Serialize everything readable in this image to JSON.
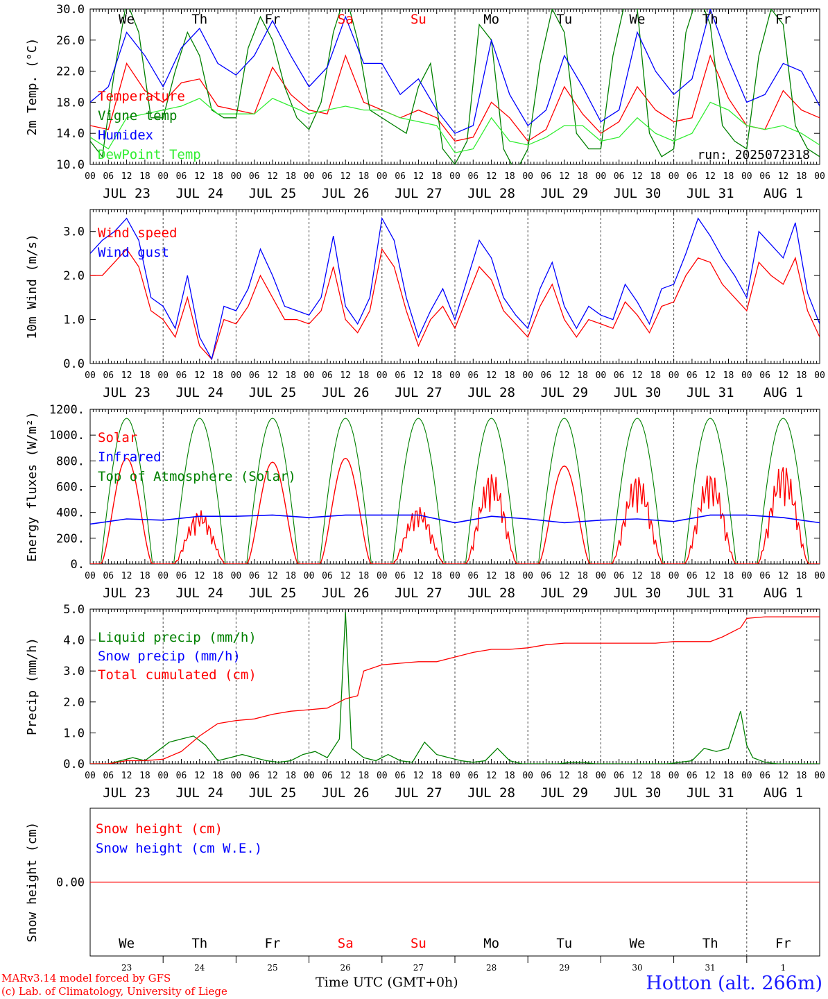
{
  "window": {
    "model_credit": "MARv3.14 model forced by GFS",
    "lab_credit": "(c) Lab. of Climatology, University of Liege",
    "location": "Hotton (alt. 266m)",
    "time_axis_label": "Time UTC (GMT+0h)",
    "run_label": "run: 2025072318"
  },
  "colors": {
    "red": "#ff0000",
    "blue": "#0000ff",
    "green": "#008000",
    "lightgreen": "#33ee33",
    "black": "#000000"
  },
  "days": {
    "weekday_labels": [
      "We",
      "Th",
      "Fr",
      "Sa",
      "Su",
      "Mo",
      "Tu",
      "We",
      "Th",
      "Fr"
    ],
    "weekday_colors": [
      "#000000",
      "#000000",
      "#000000",
      "#ff0000",
      "#ff0000",
      "#000000",
      "#000000",
      "#000000",
      "#000000",
      "#000000"
    ],
    "date_labels": [
      "JUL 23",
      "JUL 24",
      "JUL 25",
      "JUL 26",
      "JUL 27",
      "JUL 28",
      "JUL 29",
      "JUL 30",
      "JUL 31",
      "AUG  1"
    ],
    "day_numbers": [
      "23",
      "24",
      "25",
      "26",
      "27",
      "28",
      "29",
      "30",
      "31",
      "1"
    ],
    "hour_ticks": [
      "00",
      "06",
      "12",
      "18"
    ],
    "final_hour_tick": "00"
  },
  "chart_data": [
    {
      "type": "line",
      "ylabel": "2m Temp. (°C)",
      "ylim": [
        10,
        30
      ],
      "yticks": [
        "10.0",
        "14.0",
        "18.0",
        "22.0",
        "26.0",
        "30.0"
      ],
      "x_unit": "hours since JUL 23 00 UTC",
      "series": [
        {
          "name": "Temperature",
          "color": "#ff0000",
          "x": [
            0,
            6,
            12,
            18,
            24,
            30,
            36,
            42,
            48,
            54,
            60,
            66,
            72,
            78,
            84,
            90,
            96,
            102,
            108,
            114,
            120,
            126,
            132,
            138,
            144,
            150,
            156,
            162,
            168,
            174,
            180,
            186,
            192,
            198,
            204,
            210,
            216,
            222,
            228,
            234,
            240
          ],
          "y": [
            15,
            14.5,
            23,
            19.5,
            18,
            20.5,
            21,
            17.5,
            17,
            16.5,
            22.5,
            19,
            17,
            16.5,
            24,
            18,
            17,
            16,
            17,
            16,
            13,
            13.5,
            18,
            16,
            13,
            14.5,
            20,
            16.5,
            14,
            15.5,
            20,
            17,
            15.5,
            16,
            24,
            18.5,
            15,
            14.5,
            19.5,
            17,
            16
          ]
        },
        {
          "name": "Vigne temp",
          "color": "#008000",
          "x": [
            0,
            4,
            8,
            12,
            16,
            20,
            24,
            28,
            32,
            36,
            40,
            44,
            48,
            52,
            56,
            60,
            64,
            68,
            72,
            76,
            80,
            84,
            88,
            92,
            96,
            100,
            104,
            108,
            112,
            116,
            120,
            124,
            128,
            132,
            136,
            140,
            144,
            148,
            152,
            156,
            160,
            164,
            168,
            172,
            176,
            180,
            184,
            188,
            192,
            196,
            200,
            204,
            208,
            212,
            216,
            220,
            224,
            228,
            232,
            236,
            240
          ],
          "y": [
            13,
            11,
            22,
            31,
            27,
            16,
            16,
            22,
            27,
            24,
            17,
            16,
            16,
            25,
            29,
            26,
            20,
            16,
            14.5,
            18,
            27,
            32,
            26,
            17,
            16,
            15,
            14,
            20,
            23,
            12,
            10,
            13,
            28,
            26,
            12,
            9,
            12,
            23,
            30,
            27,
            14,
            12,
            12,
            24,
            31,
            30,
            14,
            11,
            12,
            27,
            32,
            28,
            15,
            13,
            12,
            24,
            30,
            28,
            15,
            12,
            11
          ]
        },
        {
          "name": "Humidex",
          "color": "#0000ff",
          "x": [
            0,
            6,
            12,
            18,
            24,
            30,
            36,
            42,
            48,
            54,
            60,
            66,
            72,
            78,
            84,
            90,
            96,
            102,
            108,
            114,
            120,
            126,
            132,
            138,
            144,
            150,
            156,
            162,
            168,
            174,
            180,
            186,
            192,
            198,
            204,
            210,
            216,
            222,
            228,
            234,
            240
          ],
          "y": [
            18,
            20,
            27,
            24,
            20,
            25,
            27.5,
            23,
            21.5,
            24,
            28.5,
            24,
            20,
            22.5,
            29,
            23,
            23,
            19,
            21,
            17,
            14,
            15,
            26,
            19,
            15,
            17,
            24,
            20,
            15.5,
            17,
            27,
            22,
            19,
            21,
            30,
            23.5,
            18,
            19,
            23,
            22,
            17.5
          ]
        },
        {
          "name": "DewPoint Temp",
          "color": "#33ee33",
          "x": [
            0,
            6,
            12,
            18,
            24,
            30,
            36,
            42,
            48,
            54,
            60,
            66,
            72,
            78,
            84,
            90,
            96,
            102,
            108,
            114,
            120,
            126,
            132,
            138,
            144,
            150,
            156,
            162,
            168,
            174,
            180,
            186,
            192,
            198,
            204,
            210,
            216,
            222,
            228,
            234,
            240
          ],
          "y": [
            13.5,
            12,
            16,
            16.5,
            17,
            17.5,
            18.5,
            16.5,
            16.5,
            16.5,
            18.5,
            17.5,
            16.5,
            17,
            17.5,
            17,
            17,
            16,
            15.5,
            15,
            11.5,
            12,
            16,
            13,
            12.5,
            13.5,
            15,
            15,
            13,
            13.5,
            16,
            14,
            13,
            14,
            18,
            17,
            15,
            14.5,
            15,
            14,
            12.5
          ]
        }
      ]
    },
    {
      "type": "line",
      "ylabel": "10m Wind (m/s)",
      "ylim": [
        0,
        3.5
      ],
      "yticks": [
        "0.0",
        "1.0",
        "2.0",
        "3.0"
      ],
      "x_unit": "hours since JUL 23 00 UTC",
      "series": [
        {
          "name": "Wind speed",
          "color": "#ff0000",
          "x": [
            0,
            4,
            8,
            12,
            16,
            20,
            24,
            28,
            32,
            36,
            40,
            44,
            48,
            52,
            56,
            60,
            64,
            68,
            72,
            76,
            80,
            84,
            88,
            92,
            96,
            100,
            104,
            108,
            112,
            116,
            120,
            124,
            128,
            132,
            136,
            140,
            144,
            148,
            152,
            156,
            160,
            164,
            168,
            172,
            176,
            180,
            184,
            188,
            192,
            196,
            200,
            204,
            208,
            212,
            216,
            220,
            224,
            228,
            232,
            236,
            240
          ],
          "y": [
            2.0,
            2.0,
            2.3,
            2.6,
            2.2,
            1.2,
            1.0,
            0.6,
            1.5,
            0.4,
            0.1,
            1.0,
            0.9,
            1.3,
            2.0,
            1.5,
            1.0,
            1.0,
            0.9,
            1.2,
            2.2,
            1.0,
            0.7,
            1.2,
            2.6,
            2.2,
            1.2,
            0.4,
            1.0,
            1.3,
            0.8,
            1.5,
            2.2,
            1.9,
            1.2,
            0.9,
            0.6,
            1.3,
            1.8,
            1.0,
            0.6,
            1.0,
            0.9,
            0.8,
            1.4,
            1.1,
            0.7,
            1.3,
            1.4,
            2.0,
            2.4,
            2.3,
            1.8,
            1.5,
            1.2,
            2.3,
            2.0,
            1.8,
            2.4,
            1.2,
            0.6
          ]
        },
        {
          "name": "Wind gust",
          "color": "#0000ff",
          "x": [
            0,
            4,
            8,
            12,
            16,
            20,
            24,
            28,
            32,
            36,
            40,
            44,
            48,
            52,
            56,
            60,
            64,
            68,
            72,
            76,
            80,
            84,
            88,
            92,
            96,
            100,
            104,
            108,
            112,
            116,
            120,
            124,
            128,
            132,
            136,
            140,
            144,
            148,
            152,
            156,
            160,
            164,
            168,
            172,
            176,
            180,
            184,
            188,
            192,
            196,
            200,
            204,
            208,
            212,
            216,
            220,
            224,
            228,
            232,
            236,
            240
          ],
          "y": [
            2.5,
            2.8,
            3.0,
            3.3,
            2.8,
            1.5,
            1.3,
            0.8,
            2.0,
            0.6,
            0.1,
            1.3,
            1.2,
            1.7,
            2.6,
            2.0,
            1.3,
            1.2,
            1.1,
            1.5,
            2.9,
            1.3,
            0.9,
            1.5,
            3.3,
            2.8,
            1.5,
            0.6,
            1.2,
            1.7,
            1.0,
            1.9,
            2.8,
            2.4,
            1.5,
            1.1,
            0.8,
            1.7,
            2.3,
            1.3,
            0.8,
            1.3,
            1.1,
            1.0,
            1.8,
            1.4,
            0.9,
            1.7,
            1.8,
            2.5,
            3.3,
            2.9,
            2.4,
            2.0,
            1.5,
            3.0,
            2.7,
            2.4,
            3.2,
            1.6,
            0.9
          ]
        }
      ]
    },
    {
      "type": "line",
      "ylabel": "Energy fluxes (W/m²)",
      "ylim": [
        0,
        1200
      ],
      "yticks": [
        "0.",
        "200.",
        "400.",
        "600.",
        "800.",
        "1000.",
        "1200."
      ],
      "x_unit": "hours since JUL 23 00 UTC",
      "series": [
        {
          "name": "Solar",
          "color": "#ff0000",
          "peaks": [
            820,
            420,
            790,
            820,
            450,
            720,
            760,
            700,
            720,
            790
          ]
        },
        {
          "name": "Infrared",
          "color": "#0000ff",
          "x": [
            0,
            12,
            24,
            36,
            48,
            60,
            72,
            84,
            96,
            108,
            120,
            132,
            144,
            156,
            168,
            180,
            192,
            204,
            216,
            228,
            240
          ],
          "y": [
            310,
            350,
            340,
            370,
            370,
            380,
            360,
            380,
            380,
            380,
            320,
            370,
            350,
            320,
            340,
            350,
            330,
            380,
            380,
            360,
            320
          ]
        },
        {
          "name": "Top of Atmosphere (Solar)",
          "color": "#008000",
          "peak": 1130
        }
      ]
    },
    {
      "type": "line",
      "ylabel": "Precip (mm/h)",
      "ylim": [
        0,
        5
      ],
      "yticks": [
        "0.0",
        "1.0",
        "2.0",
        "3.0",
        "4.0",
        "5.0"
      ],
      "x_unit": "hours since JUL 23 00 UTC",
      "series": [
        {
          "name": "Liquid precip (mm/h)",
          "color": "#008000",
          "x": [
            0,
            6,
            10,
            14,
            18,
            22,
            26,
            30,
            34,
            38,
            42,
            46,
            50,
            54,
            58,
            62,
            66,
            70,
            74,
            78,
            82,
            84,
            86,
            90,
            94,
            98,
            102,
            106,
            110,
            114,
            118,
            122,
            126,
            130,
            134,
            138,
            142,
            146,
            150,
            154,
            158,
            162,
            166,
            170,
            174,
            178,
            182,
            186,
            190,
            194,
            198,
            202,
            206,
            210,
            214,
            216,
            218,
            222,
            226,
            230,
            234,
            240
          ],
          "y": [
            0,
            0,
            0.1,
            0.2,
            0.1,
            0.4,
            0.7,
            0.8,
            0.9,
            0.6,
            0.1,
            0.2,
            0.3,
            0.2,
            0.1,
            0.05,
            0.1,
            0.3,
            0.4,
            0.2,
            0.8,
            4.9,
            0.5,
            0.2,
            0.1,
            0.3,
            0.1,
            0.05,
            0.7,
            0.3,
            0.2,
            0.1,
            0.05,
            0.1,
            0.5,
            0.1,
            0,
            0,
            0,
            0,
            0.05,
            0.05,
            0,
            0,
            0,
            0,
            0,
            0,
            0,
            0.05,
            0.1,
            0.5,
            0.4,
            0.5,
            1.7,
            0.6,
            0.2,
            0.05,
            0,
            0,
            0,
            0
          ]
        },
        {
          "name": "Snow precip (mm/h)",
          "color": "#0000ff"
        },
        {
          "name": "Total cumulated (cm)",
          "color": "#ff0000",
          "x": [
            0,
            6,
            12,
            18,
            24,
            30,
            36,
            42,
            48,
            54,
            60,
            66,
            72,
            78,
            84,
            88,
            90,
            96,
            102,
            108,
            114,
            120,
            126,
            132,
            138,
            144,
            150,
            156,
            162,
            168,
            174,
            180,
            186,
            192,
            198,
            204,
            208,
            214,
            216,
            222,
            228,
            234,
            240
          ],
          "y": [
            0,
            0,
            0.1,
            0.1,
            0.15,
            0.4,
            0.9,
            1.3,
            1.4,
            1.45,
            1.6,
            1.7,
            1.75,
            1.8,
            2.1,
            2.2,
            3.0,
            3.2,
            3.25,
            3.3,
            3.3,
            3.45,
            3.6,
            3.7,
            3.7,
            3.75,
            3.85,
            3.9,
            3.9,
            3.9,
            3.9,
            3.9,
            3.9,
            3.95,
            3.95,
            3.95,
            4.1,
            4.4,
            4.7,
            4.75,
            4.75,
            4.75,
            4.75
          ]
        }
      ]
    },
    {
      "type": "line",
      "ylabel": "Snow height (cm)",
      "ylim": [
        -1,
        1
      ],
      "yticks": [
        "0.00"
      ],
      "x_unit": "hours since JUL 23 00 UTC",
      "series": [
        {
          "name": "Snow height (cm)",
          "color": "#ff0000",
          "x": [
            0,
            240
          ],
          "y": [
            0,
            0
          ]
        },
        {
          "name": "Snow height (cm W.E.)",
          "color": "#0000ff"
        }
      ]
    }
  ]
}
